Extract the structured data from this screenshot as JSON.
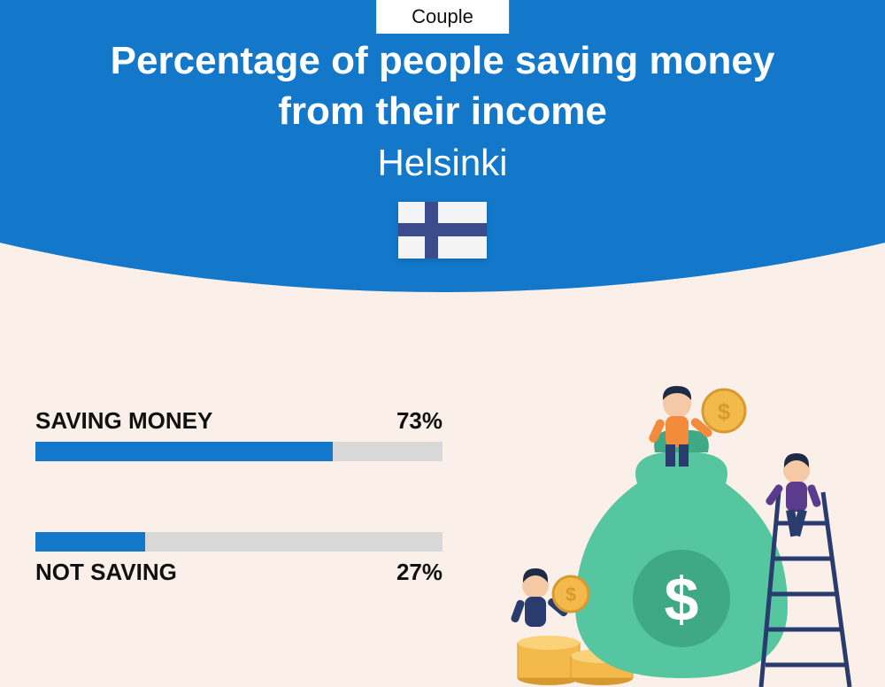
{
  "colors": {
    "page_bg": "#faf0e9",
    "curve_bg": "#1378c9",
    "track_bg": "#d8d8d8",
    "bar_fill": "#1378c9",
    "flag_bg": "#f4f4f4",
    "flag_cross": "#3b4b8c",
    "text_dark": "#111111",
    "text_light": "#ffffff"
  },
  "tag": "Couple",
  "title_line1": "Percentage of people saving money",
  "title_line2": "from their income",
  "city": "Helsinki",
  "bars": [
    {
      "label": "SAVING MONEY",
      "value": 73,
      "display": "73%",
      "label_position": "above"
    },
    {
      "label": "NOT SAVING",
      "value": 27,
      "display": "27%",
      "label_position": "below"
    }
  ],
  "typography": {
    "title_size": 44,
    "title_weight": 800,
    "city_size": 42,
    "bar_label_size": 26,
    "tag_size": 22
  },
  "illustration": {
    "bag": "#55c6a0",
    "bag_shadow": "#3fa884",
    "dollar": "#ffffff",
    "coin": "#f3b94b",
    "coin_edge": "#d89a2f",
    "person1_hair": "#1f2a44",
    "person1_shirt": "#f28b3b",
    "person1_pants": "#2a3c6e",
    "person2_hair": "#1f2a44",
    "person2_shirt": "#5b3b8c",
    "person2_pants": "#2a3c6e",
    "person3_hair": "#1f2a44",
    "person3_shirt": "#2a3c6e",
    "ladder": "#2a3c6e",
    "skin": "#f5c9a6"
  }
}
